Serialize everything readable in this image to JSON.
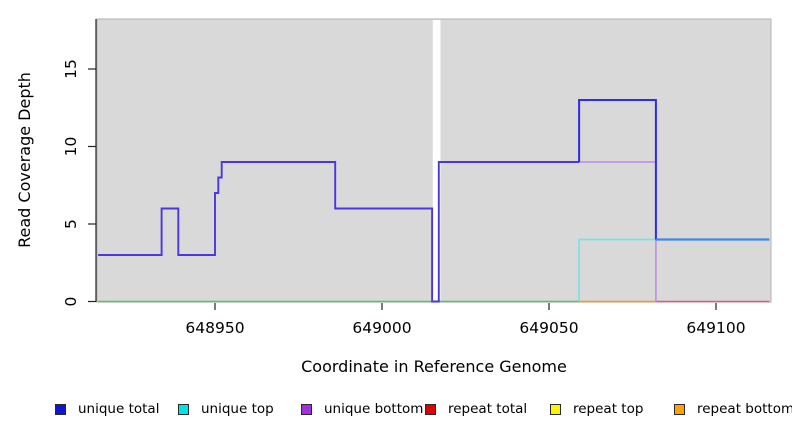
{
  "chart_data": {
    "type": "line",
    "title": "",
    "xlabel": "Coordinate in Reference Genome",
    "ylabel": "Read Coverage Depth",
    "x_ticks": [
      648950,
      649000,
      649050,
      649100
    ],
    "x_tick_labels": [
      "648950",
      "649000",
      "649050",
      "649100"
    ],
    "y_ticks": [
      0,
      5,
      10,
      15
    ],
    "y_tick_labels": [
      "0",
      "5",
      "10",
      "15"
    ],
    "xlim": [
      648915,
      649116
    ],
    "ylim": [
      0,
      18.2
    ],
    "grid": "off",
    "panel_bg": "#d9d9d9",
    "panel_border": "#bcbcbc",
    "gap_region": {
      "from": 649015.2,
      "to": 649017.5,
      "color": "#ffffff"
    },
    "legend_position": "bottom",
    "legend": [
      {
        "label": "unique total",
        "color": "#1016cf"
      },
      {
        "label": "unique top",
        "color": "#00e3e6"
      },
      {
        "label": "unique bottom",
        "color": "#a330d8"
      },
      {
        "label": "repeat total",
        "color": "#df0000"
      },
      {
        "label": "repeat top",
        "color": "#fdf500"
      },
      {
        "label": "repeat bottom",
        "color": "#ffa20a"
      }
    ],
    "series": [
      {
        "name": "unique total",
        "points": [
          [
            648915,
            3
          ],
          [
            648934,
            3
          ],
          [
            648934,
            6
          ],
          [
            648939,
            6
          ],
          [
            648939,
            3
          ],
          [
            648950,
            3
          ],
          [
            648950,
            7
          ],
          [
            648951,
            7
          ],
          [
            648951,
            8
          ],
          [
            648952,
            8
          ],
          [
            648952,
            9
          ],
          [
            648986,
            9
          ],
          [
            648986,
            6
          ],
          [
            649015,
            6
          ],
          [
            649015,
            0
          ],
          [
            649017,
            0
          ],
          [
            649017,
            9
          ],
          [
            649059,
            9
          ],
          [
            649059,
            13
          ],
          [
            649082,
            13
          ],
          [
            649082,
            4
          ],
          [
            649116,
            4
          ]
        ]
      },
      {
        "name": "unique top",
        "points": [
          [
            648915,
            0
          ],
          [
            649059,
            0
          ],
          [
            649059,
            4
          ],
          [
            649116,
            4
          ]
        ]
      },
      {
        "name": "unique bottom",
        "points": [
          [
            648915,
            3
          ],
          [
            648934,
            3
          ],
          [
            648934,
            6
          ],
          [
            648939,
            6
          ],
          [
            648939,
            3
          ],
          [
            648950,
            3
          ],
          [
            648950,
            7
          ],
          [
            648951,
            7
          ],
          [
            648951,
            8
          ],
          [
            648952,
            8
          ],
          [
            648952,
            9
          ],
          [
            648986,
            9
          ],
          [
            648986,
            6
          ],
          [
            649015,
            6
          ],
          [
            649015,
            0
          ],
          [
            649017,
            0
          ],
          [
            649017,
            9
          ],
          [
            649059,
            9
          ],
          [
            649082,
            9
          ],
          [
            649082,
            0
          ],
          [
            649116,
            0
          ]
        ]
      },
      {
        "name": "repeat total",
        "points": [
          [
            648915,
            0
          ],
          [
            649116,
            0
          ]
        ]
      },
      {
        "name": "repeat top",
        "points": [
          [
            648915,
            0
          ],
          [
            649116,
            0
          ]
        ]
      },
      {
        "name": "repeat bottom",
        "points": [
          [
            648915,
            0
          ],
          [
            649116,
            0
          ]
        ]
      }
    ],
    "visible_segments": [
      {
        "name": "baseline-green",
        "color": "#5abf66",
        "width": 1.5,
        "points": [
          [
            648915,
            0
          ],
          [
            649059,
            0
          ]
        ]
      },
      {
        "name": "baseline-orange",
        "color": "#ff9517",
        "width": 1.6,
        "points": [
          [
            649059,
            0
          ],
          [
            649082,
            0
          ]
        ]
      },
      {
        "name": "baseline-crimson",
        "color": "#e05a86",
        "width": 1.6,
        "points": [
          [
            649082,
            0
          ],
          [
            649116,
            0
          ]
        ]
      },
      {
        "name": "unique-top-cyan",
        "color": "#74e6e2",
        "width": 1.7,
        "points": [
          [
            649059,
            0
          ],
          [
            649059,
            4
          ],
          [
            649116,
            4
          ]
        ]
      },
      {
        "name": "unique-bottom-purple",
        "color": "#bd88e4",
        "width": 1.5,
        "points": [
          [
            649059,
            9
          ],
          [
            649082,
            9
          ],
          [
            649082,
            0
          ]
        ]
      },
      {
        "name": "unique-total-main",
        "color": "#4b36e0",
        "width": 1.9,
        "points": [
          [
            648915,
            3
          ],
          [
            648934,
            3
          ],
          [
            648934,
            6
          ],
          [
            648939,
            6
          ],
          [
            648939,
            3
          ],
          [
            648950,
            3
          ],
          [
            648950,
            7
          ],
          [
            648951,
            7
          ],
          [
            648951,
            8
          ],
          [
            648952,
            8
          ],
          [
            648952,
            9
          ],
          [
            648986,
            9
          ],
          [
            648986,
            6
          ],
          [
            649015,
            6
          ],
          [
            649015,
            0
          ],
          [
            649017,
            0
          ],
          [
            649017,
            9
          ],
          [
            649059,
            9
          ]
        ]
      },
      {
        "name": "unique-total-peak",
        "color": "#2c2cea",
        "width": 2.0,
        "points": [
          [
            649059,
            9
          ],
          [
            649059,
            13
          ],
          [
            649082,
            13
          ],
          [
            649082,
            4
          ]
        ]
      },
      {
        "name": "unique-total-tail",
        "color": "#4285e8",
        "width": 2.2,
        "points": [
          [
            649082,
            4
          ],
          [
            649116,
            4
          ]
        ]
      }
    ]
  }
}
